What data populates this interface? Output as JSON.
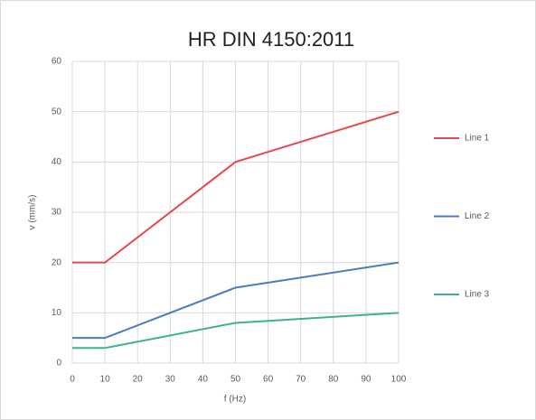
{
  "chart_data": {
    "type": "line",
    "title": "HR DIN 4150:2011",
    "x_label": "f (Hz)",
    "y_label": "v (mm/s)",
    "x": [
      0,
      10,
      50,
      100
    ],
    "series": [
      {
        "name": "Line 1",
        "color": "#e8484d",
        "values": [
          20,
          20,
          40,
          50
        ]
      },
      {
        "name": "Line 2",
        "color": "#4a7ebb",
        "values": [
          5,
          5,
          15,
          20
        ]
      },
      {
        "name": "Line 3",
        "color": "#3cb38a",
        "values": [
          3,
          3,
          8,
          10
        ]
      }
    ],
    "xlim": [
      0,
      100
    ],
    "xticks": [
      0,
      10,
      20,
      30,
      40,
      50,
      60,
      70,
      80,
      90,
      100
    ],
    "ylim": [
      0,
      60
    ],
    "yticks": [
      0,
      10,
      20,
      30,
      40,
      50,
      60
    ],
    "grid": true,
    "legend": "right"
  }
}
